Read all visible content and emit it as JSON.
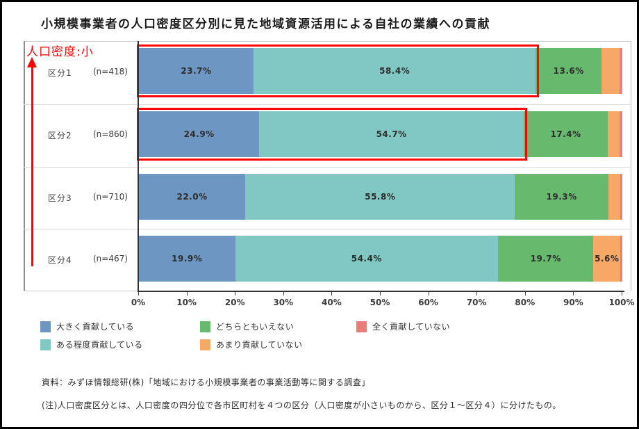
{
  "title": "小規模事業者の人口密度区分別に見た地域資源活用による自社の業績への貢献",
  "annotation": {
    "label": "人口密度:小",
    "color": "#fb0505",
    "arrow_direction": "up"
  },
  "chart_data": {
    "type": "bar",
    "variant": "horizontal_stacked_100pct",
    "title": "小規模事業者の人口密度区分別に見た地域資源活用による自社の業績への貢献",
    "categories": [
      "区分1",
      "区分2",
      "区分3",
      "区分4"
    ],
    "category_counts": [
      "(n=418)",
      "(n=860)",
      "(n=710)",
      "(n=467)"
    ],
    "series": [
      {
        "name": "大きく貢献している",
        "color": "#6d96c2",
        "values": [
          23.7,
          24.9,
          22.0,
          19.9
        ],
        "labels": [
          "23.7%",
          "24.9%",
          "22.0%",
          "19.9%"
        ]
      },
      {
        "name": "ある程度貢献している",
        "color": "#81c7c3",
        "values": [
          58.4,
          54.7,
          55.8,
          54.4
        ],
        "labels": [
          "58.4%",
          "54.7%",
          "55.8%",
          "54.4%"
        ]
      },
      {
        "name": "どちらともいえない",
        "color": "#67ba6d",
        "values": [
          13.6,
          17.4,
          19.3,
          19.7
        ],
        "labels": [
          "13.6%",
          "17.4%",
          "19.3%",
          "19.7%"
        ]
      },
      {
        "name": "あまり貢献していない",
        "color": "#f7a866",
        "values": [
          3.8,
          2.5,
          2.5,
          5.6
        ],
        "labels": [
          "",
          "",
          "",
          "5.6%"
        ]
      },
      {
        "name": "全く貢献していない",
        "color": "#ea7e76",
        "values": [
          0.5,
          0.5,
          0.4,
          0.4
        ],
        "labels": [
          "",
          "",
          "",
          ""
        ]
      }
    ],
    "x_ticks": [
      "0%",
      "10%",
      "20%",
      "30%",
      "40%",
      "50%",
      "60%",
      "70%",
      "80%",
      "90%",
      "100%"
    ],
    "xlim": [
      0,
      100
    ],
    "grid": false,
    "legend_position": "bottom",
    "highlighted": {
      "rows": [
        0,
        1
      ],
      "segments": [
        0,
        1
      ],
      "color": "#fb0505"
    }
  },
  "footer": {
    "source": "資料：みずほ情報総研(株)「地域における小規模事業者の事業活動等に関する調査」",
    "note": "(注)人口密度区分とは、人口密度の四分位で各市区町村を４つの区分（人口密度が小さいものから、区分１～区分４）に分けたもの。"
  }
}
